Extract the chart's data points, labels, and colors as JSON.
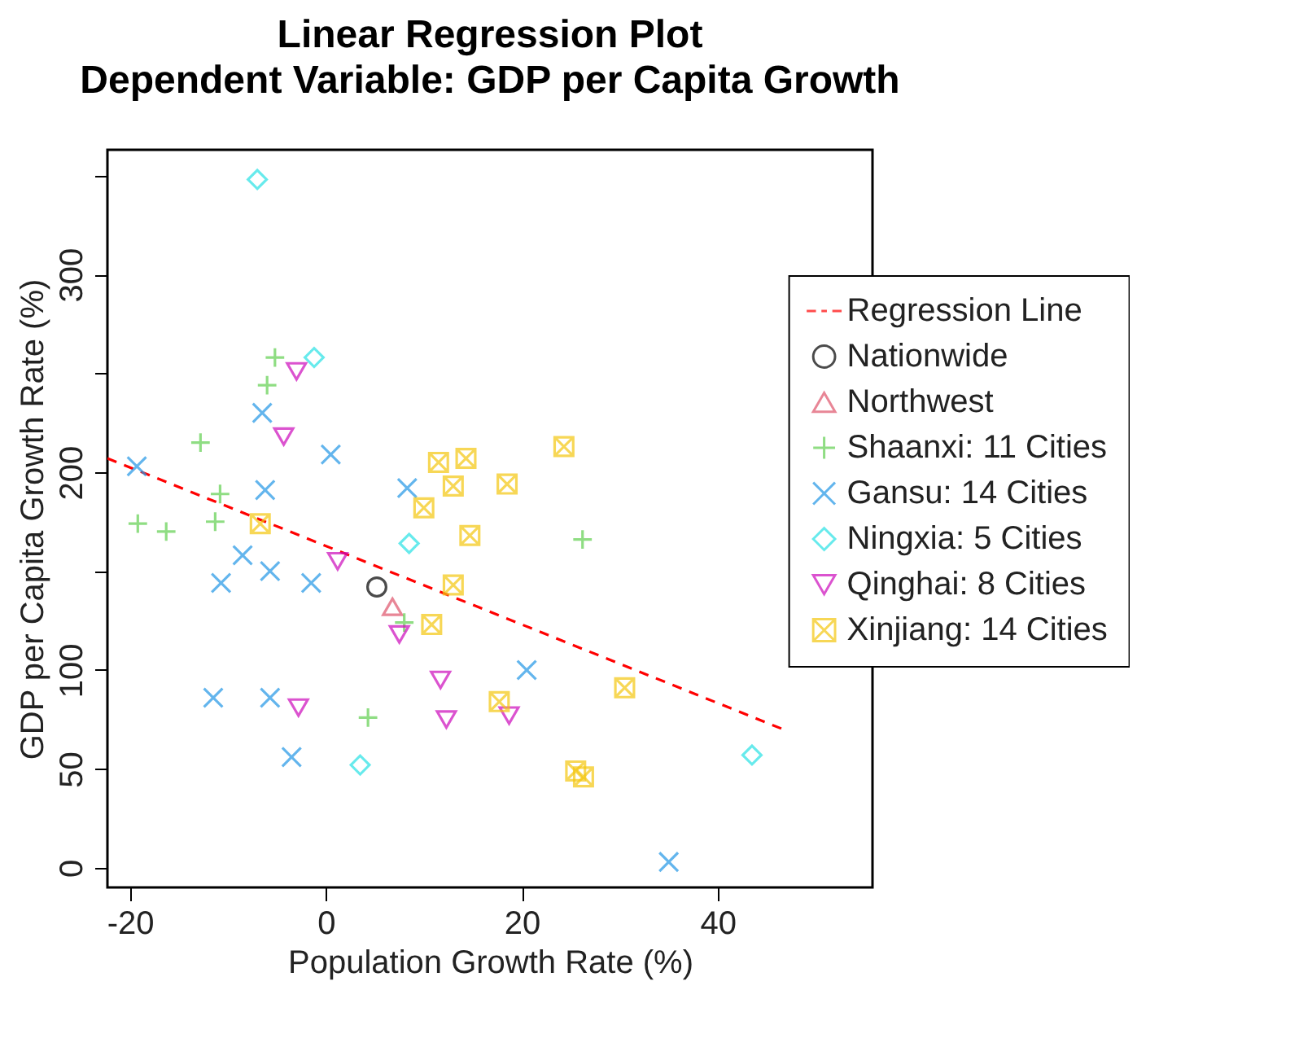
{
  "chart_data": {
    "type": "scatter",
    "title": "Linear Regression Plot",
    "subtitle": "Dependent Variable: GDP per Capita Growth",
    "xlabel": "Population Growth Rate (%)",
    "ylabel": "GDP per Capita Growth Rate (%)",
    "xlim": [
      -22.3,
      55.8
    ],
    "ylim": [
      -9.9,
      363
    ],
    "xticks": [
      -20,
      0,
      20,
      40
    ],
    "yticks": [
      0,
      50,
      100,
      {
        "value": 150,
        "label": null
      },
      200,
      {
        "value": 250,
        "label": null
      },
      300,
      {
        "value": 350,
        "label": null
      }
    ],
    "grid": false,
    "legend": "right",
    "series": [
      {
        "name": "Regression Line",
        "type": "line",
        "line_style": "dashed",
        "color": "#ff0000",
        "x": [
          -22.3,
          46.7
        ],
        "values": [
          207,
          70
        ]
      },
      {
        "name": "Nationwide",
        "type": "scatter",
        "marker": "circle",
        "color": "#000000",
        "x": [
          5.2
        ],
        "values": [
          142
        ]
      },
      {
        "name": "Northwest",
        "type": "scatter",
        "marker": "triangle",
        "color": "#df536b",
        "x": [
          6.8
        ],
        "values": [
          132
        ]
      },
      {
        "name": "Shaanxi: 11 Cities",
        "type": "scatter",
        "marker": "plus",
        "color": "#61d04f",
        "x": [
          -5.2,
          -6,
          -12.8,
          -10.8,
          -19.2,
          -16.3,
          -11.3,
          26.2,
          4.3,
          8
        ],
        "values": [
          258,
          244,
          215,
          189,
          174,
          170,
          175,
          166,
          76,
          124
        ]
      },
      {
        "name": "Gansu: 14 Cities",
        "type": "scatter",
        "marker": "x",
        "color": "#2297e6",
        "x": [
          -19.3,
          -6.5,
          0.5,
          -6.2,
          8.3,
          -8.5,
          -10.7,
          -5.7,
          -1.5,
          -11.5,
          -5.7,
          -3.5,
          20.5,
          35
        ],
        "values": [
          203,
          230,
          209,
          191,
          192,
          158,
          144,
          150,
          144,
          86,
          86,
          56,
          100,
          3
        ]
      },
      {
        "name": "Ningxia: 5 Cities",
        "type": "scatter",
        "marker": "diamond",
        "color": "#28e2e5",
        "x": [
          -7,
          -1.2,
          8.5,
          3.5,
          43.5
        ],
        "values": [
          348,
          258,
          164,
          52,
          57
        ]
      },
      {
        "name": "Qinghai: 8 Cities",
        "type": "scatter",
        "marker": "triangle-down",
        "color": "#cd0bbc",
        "x": [
          -3,
          -4.3,
          1.2,
          7.5,
          -2.8,
          11.7,
          12.3,
          18.7
        ],
        "values": [
          251,
          218,
          155,
          118,
          81,
          95,
          75,
          77
        ]
      },
      {
        "name": "Xinjiang: 14 Cities",
        "type": "scatter",
        "marker": "cross",
        "color": "#f5c710",
        "x": [
          11.5,
          14.3,
          13,
          24.3,
          18.5,
          -6.7,
          10,
          14.7,
          13,
          10.8,
          30.5,
          17.7,
          25.5,
          26.3
        ],
        "values": [
          205,
          207,
          193,
          213,
          194,
          174,
          182,
          168,
          143,
          123,
          91,
          84,
          49,
          46
        ]
      }
    ]
  }
}
